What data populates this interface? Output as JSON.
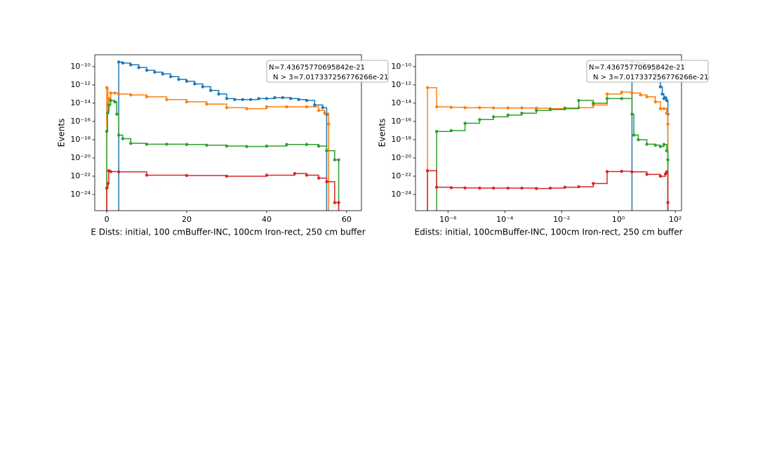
{
  "chart_data": [
    {
      "type": "line",
      "xscale": "linear",
      "yscale": "log",
      "xlabel": "E Dists: initial, 100 cmBuffer-INC, 100cm Iron-rect, 250 cm buffer",
      "ylabel": "Events",
      "annotation": [
        "N=7.43675770695842e-21",
        "N > 3=7.017337256776266e-21"
      ],
      "xlim": [
        -3,
        63.7
      ],
      "xticks": [
        0,
        20,
        40,
        60
      ],
      "ylim": [
        1.7e-26,
        2e-09
      ],
      "yticks": [
        {
          "value": 1e-10,
          "label": "10⁻¹⁰"
        },
        {
          "value": 1e-12,
          "label": "10⁻¹²"
        },
        {
          "value": 1e-14,
          "label": "10⁻¹⁴"
        },
        {
          "value": 1e-16,
          "label": "10⁻¹⁶"
        },
        {
          "value": 1e-18,
          "label": "10⁻¹⁸"
        },
        {
          "value": 1e-20,
          "label": "10⁻²⁰"
        },
        {
          "value": 1e-22,
          "label": "10⁻²²"
        },
        {
          "value": 1e-24,
          "label": "10⁻²⁴"
        }
      ],
      "series": [
        {
          "color": "#1f77b4",
          "x": [
            3,
            4,
            6,
            8,
            10,
            12,
            14,
            16,
            18,
            20,
            22,
            24,
            26,
            28,
            30,
            32,
            34,
            36,
            38,
            40,
            42,
            44,
            46,
            48,
            50,
            52,
            54,
            55
          ],
          "values": [
            3.2e-10,
            2.5e-10,
            1.6e-10,
            8e-11,
            4e-11,
            2.5e-11,
            1.6e-11,
            8e-12,
            4e-12,
            2.5e-12,
            1.3e-12,
            6.3e-13,
            2.5e-13,
            1e-13,
            3.2e-14,
            2.5e-14,
            2.5e-14,
            2.5e-14,
            3.2e-14,
            3.2e-14,
            4e-14,
            4e-14,
            3.2e-14,
            2.5e-14,
            2e-14,
            6.3e-15,
            3.2e-15,
            6.3e-16
          ]
        },
        {
          "color": "#ff7f0e",
          "x": [
            0,
            0.3,
            0.6,
            1,
            2,
            3,
            6,
            10,
            15,
            20,
            25,
            30,
            35,
            40,
            45,
            50,
            53,
            54.5,
            55.5
          ],
          "values": [
            5e-13,
            1.6e-15,
            3.2e-14,
            1.3e-13,
            1.3e-13,
            1e-13,
            8e-14,
            5e-14,
            2.5e-14,
            1.4e-14,
            8e-15,
            3.2e-15,
            2.5e-15,
            4e-15,
            4e-15,
            4e-15,
            1.6e-15,
            8e-16,
            5e-17
          ]
        },
        {
          "color": "#2ca02c",
          "x": [
            0,
            0.2,
            0.5,
            1,
            2,
            2.5,
            3,
            4,
            6,
            10,
            15,
            20,
            25,
            30,
            35,
            40,
            45,
            50,
            53,
            55,
            57,
            58
          ],
          "values": [
            8e-18,
            8e-16,
            6.3e-15,
            2e-14,
            1.4e-14,
            6.3e-16,
            3.2e-18,
            1.3e-18,
            4e-19,
            3.2e-19,
            3.2e-19,
            3e-19,
            2.5e-19,
            2e-19,
            1.8e-19,
            2e-19,
            3e-19,
            3e-19,
            2e-19,
            6.3e-20,
            6.3e-21,
            6.3e-21
          ]
        },
        {
          "color": "#d62728",
          "x": [
            0,
            0.3,
            0.5,
            1,
            3,
            10,
            20,
            30,
            40,
            47,
            50,
            53,
            55,
            57,
            58
          ],
          "values": [
            5e-24,
            1.6e-23,
            4e-22,
            3.2e-22,
            3e-22,
            1.3e-22,
            1.2e-22,
            1e-22,
            1.3e-22,
            2e-22,
            1.3e-22,
            6.3e-23,
            2.5e-23,
            1.3e-25,
            1.3e-25
          ]
        }
      ]
    },
    {
      "type": "line",
      "xscale": "log",
      "yscale": "log",
      "xlabel": "Edists: initial, 100cmBuffer-INC, 100cm Iron-rect, 250 cm buffer",
      "ylabel": "Events",
      "annotation": [
        "N=7.43675770695842e-21",
        "N > 3=7.017337256776266e-21"
      ],
      "xlim": [
        7.2e-08,
        166
      ],
      "xticks": [
        {
          "value": 1e-06,
          "label": "10⁻⁶"
        },
        {
          "value": 0.0001,
          "label": "10⁻⁴"
        },
        {
          "value": 0.01,
          "label": "10⁻²"
        },
        {
          "value": 1,
          "label": "10⁰"
        },
        {
          "value": 100,
          "label": "10²"
        }
      ],
      "ylim": [
        1.7e-26,
        2e-09
      ],
      "yticks": [
        {
          "value": 1e-10,
          "label": "10⁻¹⁰"
        },
        {
          "value": 1e-12,
          "label": "10⁻¹²"
        },
        {
          "value": 1e-14,
          "label": "10⁻¹⁴"
        },
        {
          "value": 1e-16,
          "label": "10⁻¹⁶"
        },
        {
          "value": 1e-18,
          "label": "10⁻¹⁸"
        },
        {
          "value": 1e-20,
          "label": "10⁻²⁰"
        },
        {
          "value": 1e-22,
          "label": "10⁻²²"
        },
        {
          "value": 1e-24,
          "label": "10⁻²⁴"
        }
      ],
      "series": [
        {
          "color": "#1f77b4",
          "x": [
            3,
            5,
            8,
            12,
            16,
            20,
            25,
            30,
            35,
            40,
            45,
            50,
            55
          ],
          "values": [
            3.2e-10,
            2.5e-10,
            1.6e-10,
            8e-11,
            4e-11,
            1.6e-11,
            4e-12,
            6.3e-13,
            1e-13,
            3.2e-14,
            4e-14,
            2e-14,
            6.3e-16
          ]
        },
        {
          "color": "#ff7f0e",
          "x": [
            1.9e-07,
            4e-07,
            1.3e-06,
            4e-06,
            1.3e-05,
            4e-05,
            0.00013,
            0.0004,
            0.0013,
            0.004,
            0.013,
            0.04,
            0.13,
            0.4,
            1.3,
            3,
            6,
            10,
            20,
            30,
            40,
            50,
            55
          ],
          "values": [
            5e-13,
            4e-15,
            3.5e-15,
            3.2e-15,
            3.2e-15,
            3e-15,
            3e-15,
            3e-15,
            2.8e-15,
            2.5e-15,
            3e-15,
            3.2e-15,
            6.3e-15,
            1e-13,
            1.6e-13,
            1.3e-13,
            8e-14,
            5e-14,
            1.4e-14,
            2.5e-15,
            2.5e-15,
            8e-16,
            5e-17
          ]
        },
        {
          "color": "#2ca02c",
          "x": [
            4e-07,
            1.3e-06,
            4e-06,
            1.3e-05,
            4e-05,
            0.00013,
            0.0004,
            0.0013,
            0.004,
            0.013,
            0.04,
            0.13,
            0.4,
            1.3,
            3,
            3.5,
            5,
            10,
            20,
            30,
            40,
            50,
            55
          ],
          "values": [
            8e-18,
            1e-17,
            6.3e-17,
            1.6e-16,
            3.2e-16,
            5e-16,
            8e-16,
            1.6e-15,
            2e-15,
            2.5e-15,
            2e-14,
            1e-14,
            3.2e-14,
            3.2e-14,
            6.3e-16,
            3.2e-18,
            1e-18,
            3.2e-19,
            2.5e-19,
            1.8e-19,
            3e-19,
            6.3e-20,
            6.3e-21
          ]
        },
        {
          "color": "#d62728",
          "x": [
            1.9e-07,
            4e-07,
            1.3e-06,
            4e-06,
            1.3e-05,
            4e-05,
            0.00013,
            0.0004,
            0.0013,
            0.004,
            0.013,
            0.04,
            0.13,
            0.4,
            1.3,
            3,
            10,
            30,
            45,
            50,
            55
          ],
          "values": [
            4e-22,
            6.3e-24,
            5.5e-24,
            5.2e-24,
            5e-24,
            5e-24,
            5e-24,
            5e-24,
            4.5e-24,
            5e-24,
            6.3e-24,
            7e-24,
            1.6e-23,
            3.2e-22,
            3.5e-22,
            3e-22,
            1.6e-22,
            1e-22,
            1.8e-22,
            3e-22,
            1.3e-25
          ]
        }
      ]
    }
  ]
}
